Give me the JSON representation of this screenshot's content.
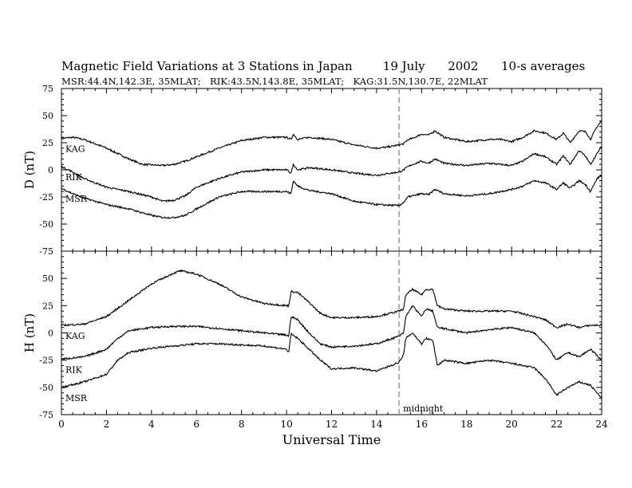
{
  "header": {
    "title": "Magnetic Field Variations at 3 Stations in Japan        19 July      2002      10-s averages",
    "subtitle": "MSR:44.4N,142.3E, 35MLAT;   RIK:43.5N,143.8E, 35MLAT;   KAG:31.5N,130.7E, 22MLAT"
  },
  "chart_data": [
    {
      "type": "line",
      "panel": "D",
      "ylabel": "D (nT)",
      "ylim": [
        -75,
        75
      ],
      "yticks": [
        75,
        50,
        25,
        0,
        -25,
        -50,
        -75
      ],
      "xlim": [
        0,
        24
      ],
      "xticks": [],
      "marker_line": {
        "x": 15
      },
      "series": [
        {
          "name": "KAG",
          "points": [
            [
              0,
              29
            ],
            [
              0.5,
              30
            ],
            [
              1,
              28
            ],
            [
              2,
              20
            ],
            [
              3,
              10
            ],
            [
              3.6,
              5
            ],
            [
              4.5,
              4
            ],
            [
              5,
              5
            ],
            [
              5.5,
              8
            ],
            [
              6,
              12
            ],
            [
              7,
              20
            ],
            [
              8,
              27
            ],
            [
              9,
              30
            ],
            [
              10,
              30
            ],
            [
              10.2,
              28
            ],
            [
              10.3,
              33
            ],
            [
              10.5,
              28
            ],
            [
              11,
              30
            ],
            [
              12,
              28
            ],
            [
              13,
              23
            ],
            [
              14,
              20
            ],
            [
              14.5,
              21
            ],
            [
              15,
              23
            ],
            [
              15.2,
              24
            ],
            [
              15.4,
              28
            ],
            [
              15.6,
              29
            ],
            [
              16,
              33
            ],
            [
              16.3,
              32
            ],
            [
              16.6,
              36
            ],
            [
              17,
              30
            ],
            [
              18,
              26
            ],
            [
              19,
              28
            ],
            [
              19.5,
              28
            ],
            [
              20,
              26
            ],
            [
              20.5,
              30
            ],
            [
              21,
              36
            ],
            [
              21.5,
              34
            ],
            [
              22,
              28
            ],
            [
              22.3,
              34
            ],
            [
              22.6,
              25
            ],
            [
              23,
              36
            ],
            [
              23.3,
              35
            ],
            [
              23.5,
              28
            ],
            [
              23.8,
              40
            ],
            [
              24,
              45
            ]
          ]
        },
        {
          "name": "RIK",
          "points": [
            [
              0,
              3
            ],
            [
              0.5,
              -2
            ],
            [
              1,
              -8
            ],
            [
              2,
              -16
            ],
            [
              3,
              -20
            ],
            [
              4,
              -25
            ],
            [
              4.5,
              -29
            ],
            [
              5,
              -28
            ],
            [
              5.5,
              -24
            ],
            [
              6,
              -16
            ],
            [
              7,
              -8
            ],
            [
              8,
              -2
            ],
            [
              9,
              0
            ],
            [
              10,
              0
            ],
            [
              10.2,
              -3
            ],
            [
              10.3,
              5
            ],
            [
              10.5,
              0
            ],
            [
              11,
              2
            ],
            [
              12,
              0
            ],
            [
              13,
              -3
            ],
            [
              14,
              -5
            ],
            [
              15,
              -2
            ],
            [
              15.2,
              0
            ],
            [
              15.4,
              3
            ],
            [
              15.6,
              5
            ],
            [
              16,
              8
            ],
            [
              16.3,
              6
            ],
            [
              16.6,
              10
            ],
            [
              17,
              6
            ],
            [
              18,
              4
            ],
            [
              19,
              6
            ],
            [
              20,
              4
            ],
            [
              20.5,
              8
            ],
            [
              21,
              15
            ],
            [
              21.5,
              12
            ],
            [
              22,
              5
            ],
            [
              22.3,
              13
            ],
            [
              22.6,
              5
            ],
            [
              23,
              18
            ],
            [
              23.3,
              12
            ],
            [
              23.5,
              5
            ],
            [
              23.8,
              15
            ],
            [
              24,
              22
            ]
          ]
        },
        {
          "name": "MSR",
          "points": [
            [
              0,
              -17
            ],
            [
              0.5,
              -22
            ],
            [
              1,
              -26
            ],
            [
              2,
              -32
            ],
            [
              3,
              -36
            ],
            [
              4,
              -42
            ],
            [
              4.5,
              -44
            ],
            [
              5,
              -44
            ],
            [
              5.5,
              -42
            ],
            [
              6,
              -36
            ],
            [
              7,
              -25
            ],
            [
              8,
              -20
            ],
            [
              9,
              -20
            ],
            [
              10,
              -20
            ],
            [
              10.2,
              -22
            ],
            [
              10.3,
              -10
            ],
            [
              10.5,
              -15
            ],
            [
              11,
              -19
            ],
            [
              12,
              -22
            ],
            [
              13,
              -29
            ],
            [
              14,
              -32
            ],
            [
              15,
              -33
            ],
            [
              15.2,
              -30
            ],
            [
              15.4,
              -25
            ],
            [
              15.6,
              -24
            ],
            [
              16,
              -22
            ],
            [
              16.3,
              -23
            ],
            [
              16.6,
              -18
            ],
            [
              17,
              -22
            ],
            [
              18,
              -24
            ],
            [
              19,
              -22
            ],
            [
              20,
              -18
            ],
            [
              20.5,
              -15
            ],
            [
              21,
              -10
            ],
            [
              21.5,
              -12
            ],
            [
              22,
              -18
            ],
            [
              22.3,
              -12
            ],
            [
              22.6,
              -17
            ],
            [
              23,
              -10
            ],
            [
              23.3,
              -14
            ],
            [
              23.5,
              -20
            ],
            [
              23.8,
              -8
            ],
            [
              24,
              -5
            ]
          ]
        }
      ]
    },
    {
      "type": "line",
      "panel": "H",
      "ylabel": "H (nT)",
      "xlabel": "Universal Time",
      "ylim": [
        -75,
        75
      ],
      "yticks": [
        50,
        25,
        0,
        -25,
        -50,
        -75
      ],
      "xlim": [
        0,
        24
      ],
      "xticks": [
        0,
        2,
        4,
        6,
        8,
        10,
        12,
        14,
        16,
        18,
        20,
        22,
        24
      ],
      "marker_line": {
        "x": 15,
        "label": "midnight"
      },
      "series": [
        {
          "name": "KAG",
          "points": [
            [
              0,
              7
            ],
            [
              1,
              8
            ],
            [
              2,
              15
            ],
            [
              3,
              30
            ],
            [
              4,
              45
            ],
            [
              5,
              55
            ],
            [
              5.3,
              57
            ],
            [
              6,
              54
            ],
            [
              7,
              45
            ],
            [
              8,
              33
            ],
            [
              9,
              27
            ],
            [
              10,
              25
            ],
            [
              10.1,
              25
            ],
            [
              10.2,
              38
            ],
            [
              10.5,
              37
            ],
            [
              11,
              28
            ],
            [
              11.5,
              18
            ],
            [
              12,
              14
            ],
            [
              13,
              14
            ],
            [
              14,
              15
            ],
            [
              15,
              20
            ],
            [
              15.2,
              22
            ],
            [
              15.3,
              35
            ],
            [
              15.6,
              40
            ],
            [
              16,
              35
            ],
            [
              16.2,
              40
            ],
            [
              16.5,
              40
            ],
            [
              16.7,
              25
            ],
            [
              17,
              22
            ],
            [
              18,
              20
            ],
            [
              19,
              20
            ],
            [
              20,
              20
            ],
            [
              21,
              15
            ],
            [
              21.5,
              12
            ],
            [
              22,
              5
            ],
            [
              22.5,
              8
            ],
            [
              23,
              5
            ],
            [
              23.5,
              7
            ],
            [
              24,
              7
            ]
          ]
        },
        {
          "name": "RIK",
          "points": [
            [
              0,
              -24
            ],
            [
              1,
              -22
            ],
            [
              2,
              -15
            ],
            [
              2.5,
              -5
            ],
            [
              3,
              2
            ],
            [
              4,
              5
            ],
            [
              5,
              6
            ],
            [
              6,
              6
            ],
            [
              7,
              4
            ],
            [
              8,
              2
            ],
            [
              9,
              0
            ],
            [
              10,
              -2
            ],
            [
              10.1,
              -3
            ],
            [
              10.2,
              15
            ],
            [
              10.5,
              12
            ],
            [
              11,
              0
            ],
            [
              11.5,
              -10
            ],
            [
              12,
              -13
            ],
            [
              13,
              -12
            ],
            [
              14,
              -10
            ],
            [
              15,
              -3
            ],
            [
              15.2,
              0
            ],
            [
              15.3,
              15
            ],
            [
              15.6,
              25
            ],
            [
              16,
              15
            ],
            [
              16.2,
              22
            ],
            [
              16.5,
              20
            ],
            [
              16.7,
              5
            ],
            [
              17,
              4
            ],
            [
              18,
              0
            ],
            [
              19,
              3
            ],
            [
              20,
              5
            ],
            [
              21,
              0
            ],
            [
              21.5,
              -10
            ],
            [
              22,
              -25
            ],
            [
              22.5,
              -18
            ],
            [
              23,
              -22
            ],
            [
              23.5,
              -15
            ],
            [
              24,
              -25
            ]
          ]
        },
        {
          "name": "MSR",
          "points": [
            [
              0,
              -50
            ],
            [
              1,
              -45
            ],
            [
              2,
              -38
            ],
            [
              2.5,
              -25
            ],
            [
              3,
              -18
            ],
            [
              4,
              -14
            ],
            [
              5,
              -12
            ],
            [
              6,
              -10
            ],
            [
              7,
              -10
            ],
            [
              8,
              -11
            ],
            [
              9,
              -12
            ],
            [
              10,
              -15
            ],
            [
              10.1,
              -18
            ],
            [
              10.2,
              -1
            ],
            [
              10.5,
              -5
            ],
            [
              11,
              -15
            ],
            [
              11.5,
              -25
            ],
            [
              12,
              -33
            ],
            [
              13,
              -32
            ],
            [
              14,
              -35
            ],
            [
              15,
              -27
            ],
            [
              15.2,
              -20
            ],
            [
              15.3,
              -5
            ],
            [
              15.6,
              0
            ],
            [
              16,
              -10
            ],
            [
              16.2,
              -5
            ],
            [
              16.5,
              -7
            ],
            [
              16.7,
              -30
            ],
            [
              17,
              -25
            ],
            [
              18,
              -28
            ],
            [
              19,
              -25
            ],
            [
              20,
              -28
            ],
            [
              21,
              -32
            ],
            [
              21.5,
              -42
            ],
            [
              22,
              -57
            ],
            [
              22.5,
              -50
            ],
            [
              23,
              -45
            ],
            [
              23.5,
              -48
            ],
            [
              24,
              -60
            ]
          ]
        }
      ]
    }
  ]
}
